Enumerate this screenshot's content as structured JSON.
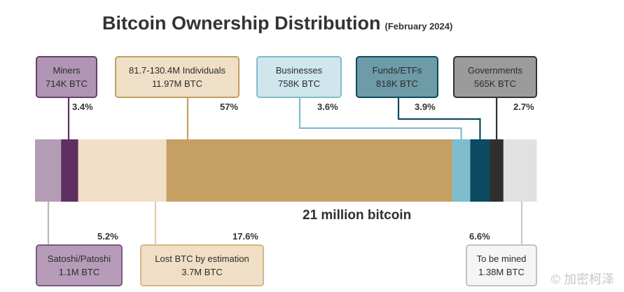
{
  "title": "Bitcoin Ownership Distribution",
  "subtitle": "(February 2024)",
  "watermark": "© 加密柯泽",
  "chart_data": {
    "type": "bar",
    "title": "Bitcoin Ownership Distribution",
    "subtitle": "(February 2024)",
    "total_label": "21 million bitcoin",
    "segments": [
      {
        "key": "satoshi",
        "name": "Satoshi/Patoshi",
        "amount": "1.1M BTC",
        "percent": "5.2%",
        "value": 5.2,
        "color": "#b49cb6"
      },
      {
        "key": "miners",
        "name": "Miners",
        "amount": "714K BTC",
        "percent": "3.4%",
        "value": 3.4,
        "color": "#5f2f60"
      },
      {
        "key": "lost",
        "name": "Lost BTC by estimation",
        "amount": "3.7M BTC",
        "percent": "17.6%",
        "value": 17.6,
        "color": "#f0dfc6"
      },
      {
        "key": "individuals",
        "name": "81.7-130.4M Individuals",
        "amount": "11.97M BTC",
        "percent": "57%",
        "value": 57,
        "color": "#c5a064"
      },
      {
        "key": "businesses",
        "name": "Businesses",
        "amount": "758K BTC",
        "percent": "3.6%",
        "value": 3.6,
        "color": "#7fbccd"
      },
      {
        "key": "funds",
        "name": "Funds/ETFs",
        "amount": "818K BTC",
        "percent": "3.9%",
        "value": 3.9,
        "color": "#0b4a60"
      },
      {
        "key": "governments",
        "name": "Governments",
        "amount": "565K BTC",
        "percent": "2.7%",
        "value": 2.7,
        "color": "#2f2f2f"
      },
      {
        "key": "tobemined",
        "name": "To be mined",
        "amount": "1.38M BTC",
        "percent": "6.6%",
        "value": 6.6,
        "color": "#e1e1e1"
      }
    ]
  }
}
